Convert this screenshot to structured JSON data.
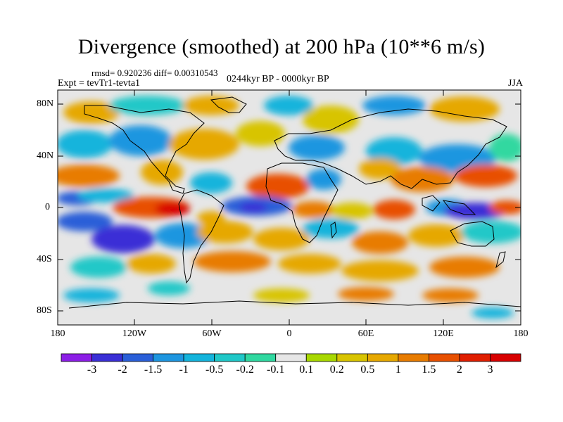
{
  "title": "Divergence (smoothed) at 200 hPa (10**6 m/s)",
  "stats": "rmsd= 0.920236 diff= 0.00310543",
  "experiment": "Expt = tevTr1-tevta1",
  "period": "0244kyr BP - 0000kyr BP",
  "season": "JJA",
  "y_axis_labels": [
    "80N",
    "40N",
    "0",
    "40S",
    "80S"
  ],
  "x_axis_labels": [
    "180",
    "120W",
    "60W",
    "0",
    "60E",
    "120E",
    "180"
  ],
  "colorbar": {
    "labels": [
      "-3",
      "-2",
      "-1.5",
      "-1",
      "-0.5",
      "-0.2",
      "-0.1",
      "0.1",
      "0.2",
      "0.5",
      "1",
      "1.5",
      "2",
      "3"
    ],
    "colors": [
      "#8c1ee6",
      "#3a2fd6",
      "#2a5fd8",
      "#1e96e0",
      "#14b4dc",
      "#20c8c8",
      "#30d8a0",
      "#e6e6e6",
      "#a8d800",
      "#d8c400",
      "#e6a800",
      "#e87c00",
      "#e85000",
      "#e01e00",
      "#d80000"
    ]
  },
  "map": {
    "projection": "cylindrical equidistant",
    "lon_range": [
      -180,
      180
    ],
    "lat_range": [
      -90,
      90
    ],
    "field": "200 hPa divergence difference"
  }
}
